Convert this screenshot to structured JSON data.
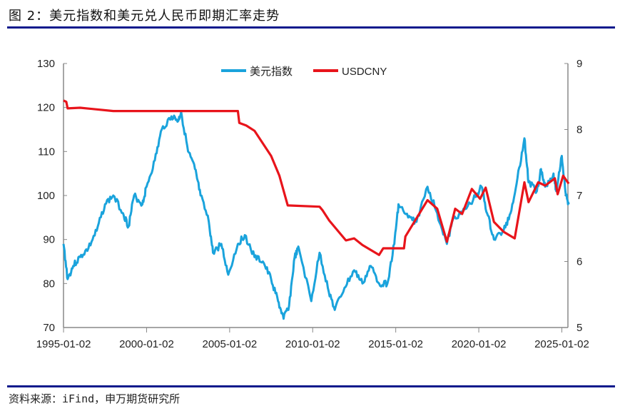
{
  "header": {
    "title": "图 2：美元指数和美元兑人民币即期汇率走势"
  },
  "footer": {
    "source": "资料来源：iFind，申万期货研究所"
  },
  "chart_data": {
    "type": "line",
    "title": "",
    "x_ticks": [
      "1995-01-02",
      "2000-01-02",
      "2005-01-02",
      "2010-01-02",
      "2015-01-02",
      "2020-01-02",
      "2025-01-02"
    ],
    "y_left": {
      "min": 70,
      "max": 130,
      "ticks": [
        70,
        80,
        90,
        100,
        110,
        120,
        130
      ]
    },
    "y_right": {
      "min": 5,
      "max": 9,
      "ticks": [
        5,
        6,
        7,
        8,
        9
      ]
    },
    "legend": "top-center",
    "grid": false,
    "series": [
      {
        "name": "美元指数",
        "axis": "left",
        "color": "#1aa3dc",
        "points": [
          [
            "1995-01",
            89
          ],
          [
            "1995-04",
            81
          ],
          [
            "1995-08",
            84
          ],
          [
            "1996-01",
            86
          ],
          [
            "1996-07",
            88
          ],
          [
            "1997-01",
            92
          ],
          [
            "1997-07",
            98
          ],
          [
            "1998-01",
            100
          ],
          [
            "1998-08",
            96
          ],
          [
            "1998-12",
            93
          ],
          [
            "1999-04",
            100
          ],
          [
            "1999-10",
            98
          ],
          [
            "2000-01",
            102
          ],
          [
            "2000-07",
            108
          ],
          [
            "2000-12",
            115
          ],
          [
            "2001-07",
            118
          ],
          [
            "2001-12",
            117
          ],
          [
            "2002-02",
            119
          ],
          [
            "2002-07",
            110
          ],
          [
            "2002-12",
            106
          ],
          [
            "2003-04",
            100
          ],
          [
            "2003-10",
            94
          ],
          [
            "2004-01",
            87
          ],
          [
            "2004-07",
            89
          ],
          [
            "2004-12",
            82
          ],
          [
            "2005-07",
            89
          ],
          [
            "2005-12",
            91
          ],
          [
            "2006-07",
            86
          ],
          [
            "2007-01",
            85
          ],
          [
            "2007-07",
            81
          ],
          [
            "2007-12",
            76
          ],
          [
            "2008-04",
            72
          ],
          [
            "2008-08",
            75
          ],
          [
            "2008-12",
            86
          ],
          [
            "2009-03",
            88
          ],
          [
            "2009-12",
            76
          ],
          [
            "2010-06",
            87
          ],
          [
            "2010-12",
            79
          ],
          [
            "2011-05",
            74
          ],
          [
            "2011-12",
            79
          ],
          [
            "2012-07",
            83
          ],
          [
            "2013-01",
            80
          ],
          [
            "2013-07",
            84
          ],
          [
            "2014-01",
            80
          ],
          [
            "2014-07",
            80
          ],
          [
            "2014-12",
            89
          ],
          [
            "2015-03",
            98
          ],
          [
            "2015-10",
            95
          ],
          [
            "2016-04",
            94
          ],
          [
            "2016-12",
            102
          ],
          [
            "2017-07",
            96
          ],
          [
            "2018-02",
            89
          ],
          [
            "2018-07",
            95
          ],
          [
            "2019-01",
            96
          ],
          [
            "2019-09",
            99
          ],
          [
            "2020-03",
            102
          ],
          [
            "2020-07",
            96
          ],
          [
            "2020-12",
            90
          ],
          [
            "2021-07",
            92
          ],
          [
            "2021-12",
            96
          ],
          [
            "2022-05",
            104
          ],
          [
            "2022-10",
            113
          ],
          [
            "2023-01",
            103
          ],
          [
            "2023-07",
            101
          ],
          [
            "2023-10",
            106
          ],
          [
            "2024-01",
            102
          ],
          [
            "2024-07",
            105
          ],
          [
            "2024-09",
            101
          ],
          [
            "2025-01",
            109
          ],
          [
            "2025-04",
            100
          ],
          [
            "2025-06",
            98
          ]
        ]
      },
      {
        "name": "USDCNY",
        "axis": "right",
        "color": "#e8141b",
        "points": [
          [
            "1995-01",
            8.44
          ],
          [
            "1995-03",
            8.42
          ],
          [
            "1995-04",
            8.32
          ],
          [
            "1996-01",
            8.33
          ],
          [
            "1998-01",
            8.28
          ],
          [
            "2005-07",
            8.28
          ],
          [
            "2005-08",
            8.1
          ],
          [
            "2006-01",
            8.06
          ],
          [
            "2006-07",
            7.98
          ],
          [
            "2007-07",
            7.6
          ],
          [
            "2008-01",
            7.3
          ],
          [
            "2008-07",
            6.85
          ],
          [
            "2010-06",
            6.83
          ],
          [
            "2010-08",
            6.78
          ],
          [
            "2011-01",
            6.62
          ],
          [
            "2012-01",
            6.32
          ],
          [
            "2012-07",
            6.35
          ],
          [
            "2013-01",
            6.25
          ],
          [
            "2014-01",
            6.1
          ],
          [
            "2014-04",
            6.2
          ],
          [
            "2015-07",
            6.2
          ],
          [
            "2015-08",
            6.38
          ],
          [
            "2016-01",
            6.55
          ],
          [
            "2016-12",
            6.93
          ],
          [
            "2017-07",
            6.8
          ],
          [
            "2018-02",
            6.3
          ],
          [
            "2018-08",
            6.8
          ],
          [
            "2019-01",
            6.72
          ],
          [
            "2019-08",
            7.1
          ],
          [
            "2020-02",
            6.95
          ],
          [
            "2020-06",
            7.12
          ],
          [
            "2020-12",
            6.6
          ],
          [
            "2021-07",
            6.45
          ],
          [
            "2022-03",
            6.35
          ],
          [
            "2022-10",
            7.2
          ],
          [
            "2023-01",
            6.9
          ],
          [
            "2023-08",
            7.2
          ],
          [
            "2024-01",
            7.15
          ],
          [
            "2024-08",
            7.26
          ],
          [
            "2024-10",
            7.02
          ],
          [
            "2025-02",
            7.3
          ],
          [
            "2025-06",
            7.18
          ]
        ]
      }
    ]
  }
}
